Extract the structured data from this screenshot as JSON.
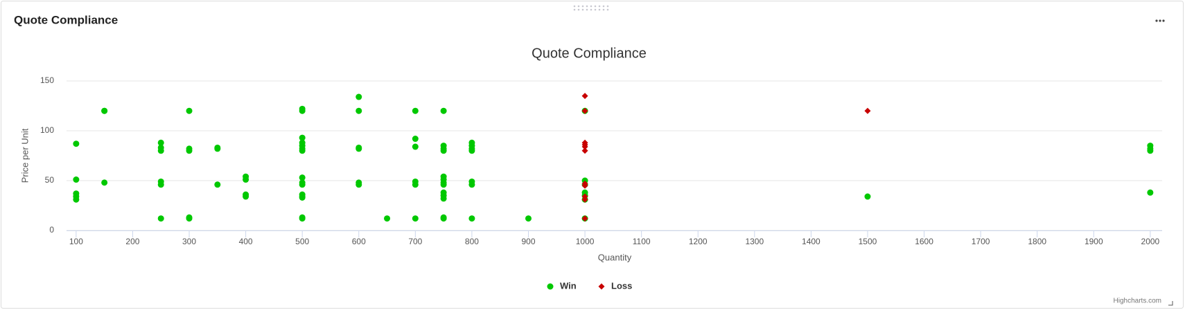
{
  "card_title": "Quote Compliance",
  "credits": "Highcharts.com",
  "chart_data": {
    "type": "scatter",
    "title": "Quote Compliance",
    "x_label": "Quantity",
    "y_label": "Price per Unit",
    "xlim": [
      83,
      2021
    ],
    "ylim": [
      0,
      150
    ],
    "xticks": [
      100,
      200,
      300,
      400,
      500,
      600,
      700,
      800,
      900,
      1000,
      1100,
      1200,
      1300,
      1400,
      1500,
      1600,
      1700,
      1800,
      1900,
      2000
    ],
    "yticks": [
      0,
      50,
      100,
      150
    ],
    "grid": true,
    "legend": "bottom",
    "series": [
      {
        "name": "Win",
        "color": "#00c800",
        "symbol": "circle",
        "x": [
          100,
          100,
          100,
          100,
          100,
          150,
          150,
          150,
          250,
          250,
          250,
          250,
          250,
          250,
          300,
          300,
          300,
          300,
          300,
          350,
          350,
          350,
          400,
          400,
          400,
          400,
          500,
          500,
          500,
          500,
          500,
          500,
          500,
          500,
          500,
          500,
          500,
          500,
          500,
          500,
          500,
          600,
          600,
          600,
          600,
          600,
          600,
          650,
          700,
          700,
          700,
          700,
          700,
          700,
          750,
          750,
          750,
          750,
          750,
          750,
          750,
          750,
          750,
          750,
          750,
          750,
          750,
          800,
          800,
          800,
          800,
          800,
          800,
          800,
          900,
          1000,
          1000,
          1000,
          1000,
          1000,
          1000,
          1000,
          1500,
          2000,
          2000,
          2000,
          2000
        ],
        "values": [
          87,
          51,
          37,
          34,
          31,
          120,
          120,
          48,
          88,
          83,
          80,
          49,
          46,
          12,
          120,
          82,
          80,
          13,
          12,
          83,
          82,
          46,
          54,
          51,
          36,
          34,
          122,
          120,
          93,
          88,
          85,
          82,
          80,
          53,
          48,
          46,
          36,
          34,
          33,
          13,
          12,
          134,
          120,
          83,
          82,
          48,
          46,
          12,
          120,
          92,
          84,
          49,
          46,
          12,
          120,
          85,
          82,
          80,
          54,
          51,
          48,
          46,
          38,
          35,
          32,
          13,
          12,
          88,
          85,
          82,
          80,
          49,
          46,
          12,
          12,
          120,
          50,
          46,
          38,
          35,
          31,
          12,
          34,
          85,
          82,
          80,
          38
        ]
      },
      {
        "name": "Loss",
        "color": "#c80000",
        "symbol": "diamond",
        "x": [
          1000,
          1000,
          1000,
          1000,
          1000,
          1000,
          1000,
          1000,
          1000,
          1000,
          1000,
          1500
        ],
        "values": [
          135,
          120,
          88,
          86,
          84,
          80,
          47,
          45,
          34,
          31,
          12,
          120
        ]
      }
    ]
  }
}
